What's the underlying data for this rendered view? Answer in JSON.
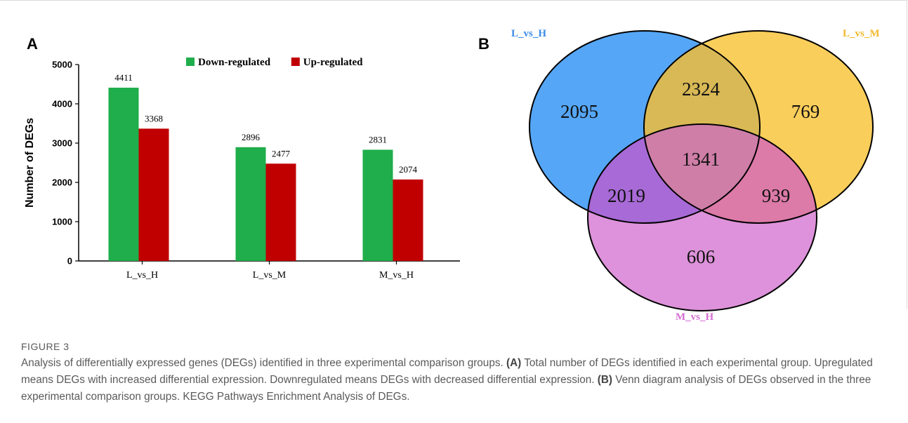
{
  "figure": {
    "panel_a_label": "A",
    "panel_b_label": "B"
  },
  "chart_data": [
    {
      "type": "bar",
      "categories": [
        "L_vs_H",
        "L_vs_M",
        "M_vs_H"
      ],
      "series": [
        {
          "name": "Down-regulated",
          "values": [
            4411,
            2896,
            2831
          ],
          "color": "#1fae4b"
        },
        {
          "name": "Up-regulated",
          "values": [
            3368,
            2477,
            2074
          ],
          "color": "#c00000"
        }
      ],
      "ylabel": "Number of DEGs",
      "ylim": [
        0,
        5000
      ],
      "yticks": [
        0,
        1000,
        2000,
        3000,
        4000,
        5000
      ],
      "legend": "top",
      "grid": false
    },
    {
      "type": "venn",
      "sets": [
        {
          "name": "L_vs_H",
          "color": "#3d9af5"
        },
        {
          "name": "L_vs_M",
          "color": "#f9c744"
        },
        {
          "name": "M_vs_H",
          "color": "#d983d6"
        }
      ],
      "regions": {
        "L_vs_H_only": 2095,
        "L_vs_M_only": 769,
        "M_vs_H_only": 606,
        "L_vs_H_and_L_vs_M": 2324,
        "L_vs_H_and_M_vs_H": 2019,
        "L_vs_M_and_M_vs_H": 939,
        "all_three": 1341
      },
      "label_colors": {
        "L_vs_H": "#3a8be8",
        "L_vs_M": "#f2b92a",
        "M_vs_H": "#d46fd3"
      }
    }
  ],
  "caption": {
    "label": "FIGURE 3",
    "intro": "Analysis of differentially expressed genes (DEGs) identified in three experimental comparison groups.",
    "a_marker": "(A)",
    "a_text": "Total number of DEGs identified in each experimental group. Upregulated means DEGs with increased differential expression. Downregulated means DEGs with decreased differential expression.",
    "b_marker": "(B)",
    "b_text": "Venn diagram analysis of DEGs observed in the three experimental comparison groups. KEGG Pathways Enrichment Analysis of DEGs."
  }
}
